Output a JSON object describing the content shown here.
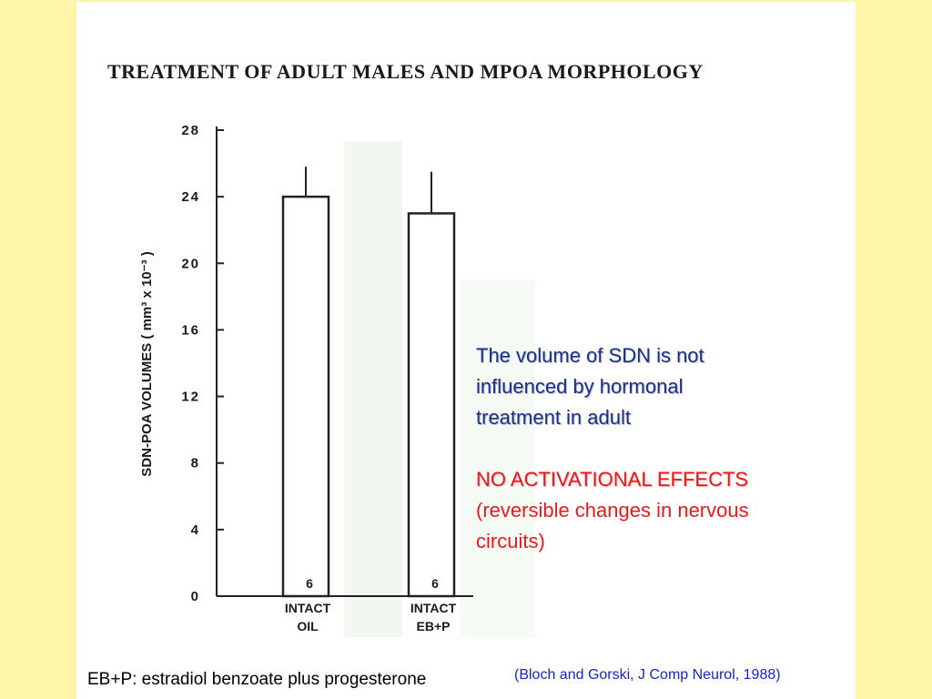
{
  "chart_data": {
    "type": "bar",
    "title": "TREATMENT OF ADULT MALES AND MPOA MORPHOLOGY",
    "ylabel": "SDN-POA VOLUMES ( mm³ x 10⁻³ )",
    "xlabel": "",
    "ylim": [
      0,
      28
    ],
    "yticks": [
      0,
      4,
      8,
      12,
      16,
      20,
      24,
      28
    ],
    "ytick_labels": [
      "0",
      "4",
      "8",
      "12",
      "16",
      "20",
      "24",
      "28"
    ],
    "categories": [
      {
        "line1": "INTACT",
        "line2": "OIL"
      },
      {
        "line1": "INTACT",
        "line2": "EB+P"
      }
    ],
    "values": [
      24.0,
      23.0
    ],
    "error_upper": [
      25.8,
      25.5
    ],
    "n_labels": [
      "6",
      "6"
    ],
    "grid": false,
    "legend": "none"
  },
  "annotation": {
    "lines": [
      "The volume of SDN is not",
      "influenced by hormonal",
      "treatment in adult"
    ],
    "headline": "NO ACTIVATIONAL EFFECTS",
    "detail_lines": [
      "(reversible changes in nervous",
      "circuits)"
    ]
  },
  "footer": {
    "abbreviation": "EB+P: estradiol benzoate plus progesterone",
    "citation": "(Bloch and Gorski, J Comp Neurol, 1988)"
  },
  "colors": {
    "background": "#fff5a8",
    "note_text": "#1b2f86",
    "emphasis": "#e8191d",
    "citation": "#1525c6"
  }
}
